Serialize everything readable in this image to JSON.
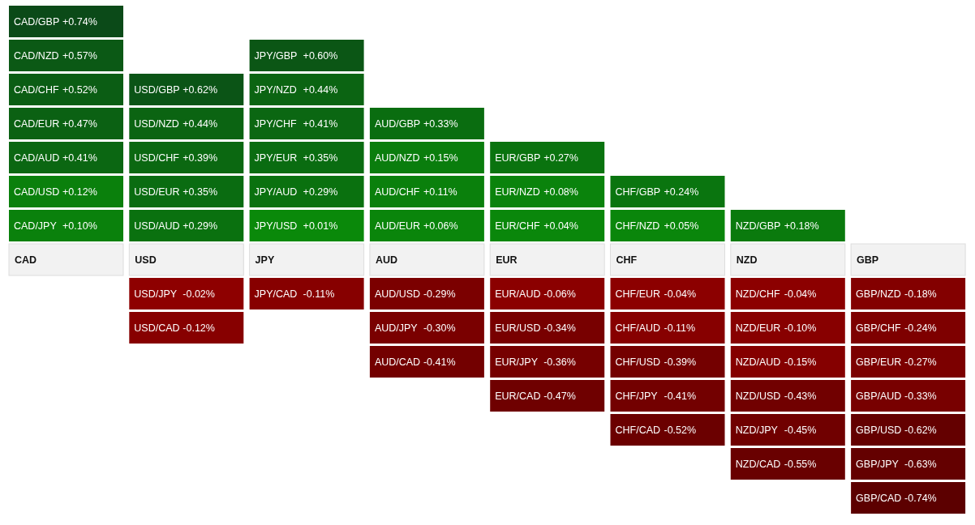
{
  "chart_data": {
    "type": "other",
    "annotations": [
      "CAD",
      "USD",
      "JPY",
      "AUD",
      "EUR",
      "CHF",
      "NZD",
      "GBP"
    ],
    "categories": [
      "CAD/GBP",
      "CAD/NZD",
      "CAD/CHF",
      "CAD/EUR",
      "CAD/AUD",
      "CAD/USD",
      "CAD/JPY",
      "USD/GBP",
      "USD/NZD",
      "USD/CHF",
      "USD/EUR",
      "USD/AUD",
      "USD/JPY",
      "USD/CAD",
      "JPY/GBP",
      "JPY/NZD",
      "JPY/CHF",
      "JPY/EUR",
      "JPY/AUD",
      "JPY/USD",
      "JPY/CAD",
      "AUD/GBP",
      "AUD/NZD",
      "AUD/CHF",
      "AUD/EUR",
      "AUD/USD",
      "AUD/JPY",
      "AUD/CAD",
      "EUR/GBP",
      "EUR/NZD",
      "EUR/CHF",
      "EUR/AUD",
      "EUR/USD",
      "EUR/JPY",
      "EUR/CAD",
      "CHF/GBP",
      "CHF/NZD",
      "CHF/EUR",
      "CHF/AUD",
      "CHF/USD",
      "CHF/JPY",
      "CHF/CAD",
      "NZD/GBP",
      "NZD/CHF",
      "NZD/EUR",
      "NZD/AUD",
      "NZD/USD",
      "NZD/JPY",
      "NZD/CAD",
      "GBP/NZD",
      "GBP/CHF",
      "GBP/EUR",
      "GBP/AUD",
      "GBP/USD",
      "GBP/JPY",
      "GBP/CAD"
    ],
    "values": [
      0.74,
      0.57,
      0.52,
      0.47,
      0.41,
      0.12,
      0.1,
      0.62,
      0.44,
      0.39,
      0.35,
      0.29,
      -0.02,
      -0.12,
      0.6,
      0.44,
      0.41,
      0.35,
      0.29,
      0.01,
      -0.11,
      0.33,
      0.15,
      0.11,
      0.06,
      -0.29,
      -0.3,
      -0.41,
      0.27,
      0.08,
      0.04,
      -0.06,
      -0.34,
      -0.36,
      -0.47,
      0.24,
      0.05,
      -0.04,
      -0.11,
      -0.39,
      -0.41,
      -0.52,
      0.18,
      -0.04,
      -0.1,
      -0.15,
      -0.43,
      -0.45,
      -0.55,
      -0.18,
      -0.24,
      -0.27,
      -0.33,
      -0.62,
      -0.63,
      -0.74
    ],
    "value_labels": [
      "+0.74%",
      "+0.57%",
      "+0.52%",
      "+0.47%",
      "+0.41%",
      "+0.12%",
      "+0.10%",
      "+0.62%",
      "+0.44%",
      "+0.39%",
      "+0.35%",
      "+0.29%",
      "-0.02%",
      "-0.12%",
      "+0.60%",
      "+0.44%",
      "+0.41%",
      "+0.35%",
      "+0.29%",
      "+0.01%",
      "-0.11%",
      "+0.33%",
      "+0.15%",
      "+0.11%",
      "+0.06%",
      "-0.29%",
      "-0.30%",
      "-0.41%",
      "+0.27%",
      "+0.08%",
      "+0.04%",
      "-0.06%",
      "-0.34%",
      "-0.36%",
      "-0.47%",
      "+0.24%",
      "+0.05%",
      "-0.04%",
      "-0.11%",
      "-0.39%",
      "-0.41%",
      "-0.52%",
      "+0.18%",
      "-0.04%",
      "-0.10%",
      "-0.15%",
      "-0.43%",
      "-0.45%",
      "-0.55%",
      "-0.18%",
      "-0.24%",
      "-0.27%",
      "-0.33%",
      "-0.62%",
      "-0.63%",
      "-0.74%"
    ]
  }
}
